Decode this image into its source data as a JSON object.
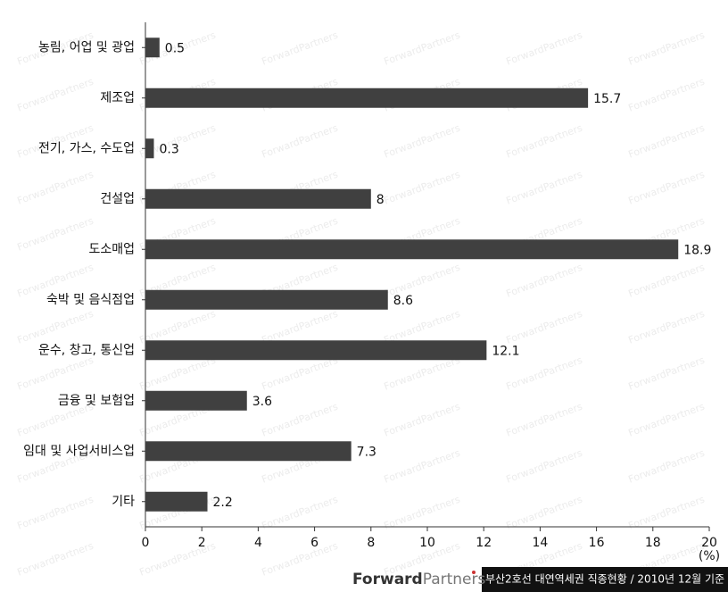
{
  "chart_data": {
    "type": "barh",
    "categories": [
      "농림, 어업 및 광업",
      "제조업",
      "전기, 가스, 수도업",
      "건설업",
      "도소매업",
      "숙박 및 음식점업",
      "운수, 창고, 통신업",
      "금융 및 보험업",
      "임대 및 사업서비스업",
      "기타"
    ],
    "values": [
      0.5,
      15.7,
      0.3,
      8,
      18.9,
      8.6,
      12.1,
      3.6,
      7.3,
      2.2
    ],
    "color": "#404040",
    "xlim": [
      0,
      20
    ],
    "xticks": [
      0,
      2,
      4,
      6,
      8,
      10,
      12,
      14,
      16,
      18,
      20
    ],
    "xlabel": "(%)"
  },
  "watermark": "ForwardPartners",
  "footer": {
    "logo_bold": "Forward",
    "logo_light": "Partners",
    "caption": "부산2호선 대연역세권 직종현황 / 2010년 12월 기준"
  }
}
